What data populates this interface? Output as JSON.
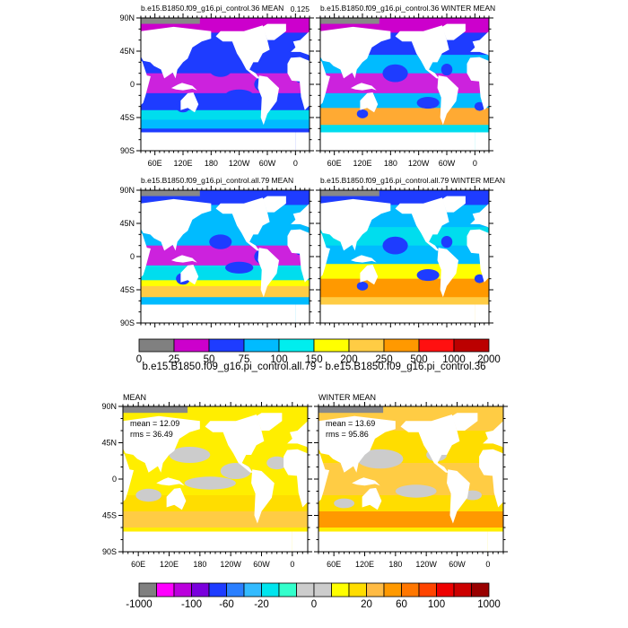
{
  "panels": [
    {
      "title": "b.e15.B1850.f09_g16.pi_control.36 MEAN",
      "note": "0.125"
    },
    {
      "title": "b.e15.B1850.f09_g16.pi_control.36 WINTER MEAN"
    },
    {
      "title": "b.e15.B1850.f09_g16.pi_control.all.79 MEAN"
    },
    {
      "title": "b.e15.B1850.f09_g16.pi_control.all.79 WINTER MEAN"
    }
  ],
  "lat_labels": [
    "90N",
    "45N",
    "0",
    "45S",
    "90S"
  ],
  "lon_labels": [
    "60E",
    "120E",
    "180",
    "120W",
    "60W",
    "0"
  ],
  "colorbar_top": {
    "labels": [
      "0",
      "25",
      "50",
      "75",
      "100",
      "150",
      "200",
      "250",
      "500",
      "1000",
      "2000"
    ]
  },
  "difference_title": "b.e15.B1850.f09_g16.pi_control.all.79 - b.e15.B1850.f09_g16.pi_control.36",
  "diff_panels": [
    {
      "title": "MEAN",
      "mean": "mean = 12.09",
      "rms": "rms = 36.49"
    },
    {
      "title": "WINTER MEAN",
      "mean": "mean = 13.69",
      "rms": "rms = 95.86"
    }
  ],
  "colorbar_bottom": {
    "labels": [
      "-1000",
      "-100",
      "-60",
      "-20",
      "0",
      "20",
      "60",
      "100",
      "1000"
    ]
  }
}
